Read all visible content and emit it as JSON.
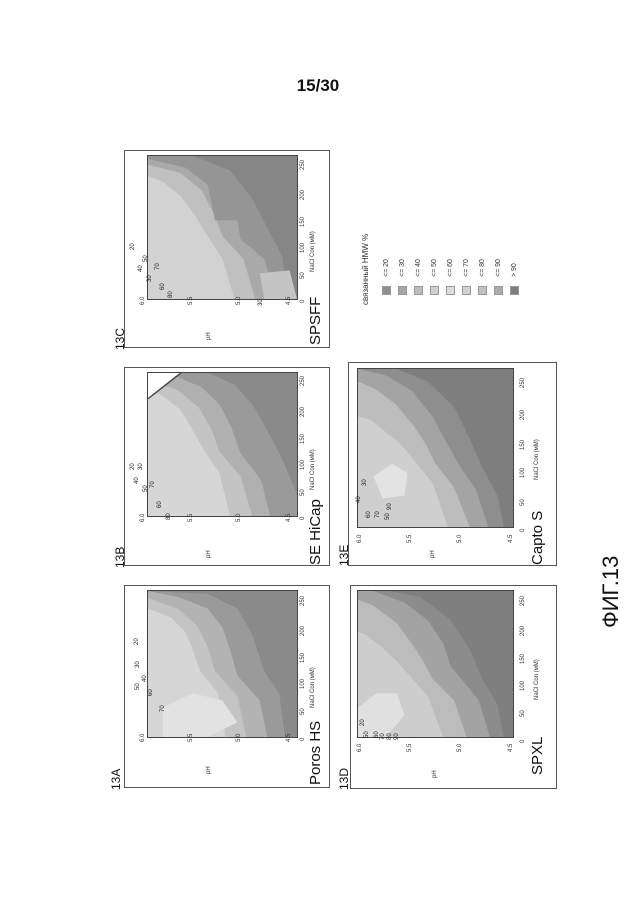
{
  "page": {
    "number": "15/30"
  },
  "figure": {
    "caption": "ФИГ.13"
  },
  "axes": {
    "x_label": "NaCl Con (мМ)",
    "y_label": "pH",
    "x_ticks": [
      "0",
      "50",
      "100",
      "150",
      "200",
      "250"
    ],
    "y_ticks": [
      "4.5",
      "5.0",
      "5.5",
      "6.0"
    ]
  },
  "panels": [
    {
      "id": "13A",
      "name": "Poros HS",
      "contour_labels": [
        "50",
        "30",
        "70",
        "60",
        "40",
        "20"
      ]
    },
    {
      "id": "13B",
      "name": "SE HiCap",
      "contour_labels": [
        "40",
        "30",
        "50",
        "70",
        "60",
        "80",
        "20"
      ]
    },
    {
      "id": "13C",
      "name": "SPSFF",
      "contour_labels": [
        "20",
        "40",
        "50",
        "30",
        "70",
        "60",
        "80",
        "30"
      ]
    },
    {
      "id": "13D",
      "name": "SPXL",
      "contour_labels": [
        "20",
        "50",
        "60",
        "70",
        "80",
        "90"
      ]
    },
    {
      "id": "13E",
      "name": "Capto S",
      "contour_labels": [
        "40",
        "60",
        "70",
        "50",
        "90",
        "30"
      ]
    }
  ],
  "legend": {
    "title": "связанный HMW %",
    "items": [
      "<= 20",
      "<= 30",
      "<= 40",
      "<= 50",
      "<= 60",
      "<= 70",
      "<= 80",
      "<= 90",
      "> 90"
    ],
    "colors": [
      "#8f8f8f",
      "#a6a6a6",
      "#bdbdbd",
      "#cfcfcf",
      "#dcdcdc",
      "#d2d2d2",
      "#c2c2c2",
      "#acacac",
      "#7d7d7d"
    ]
  }
}
